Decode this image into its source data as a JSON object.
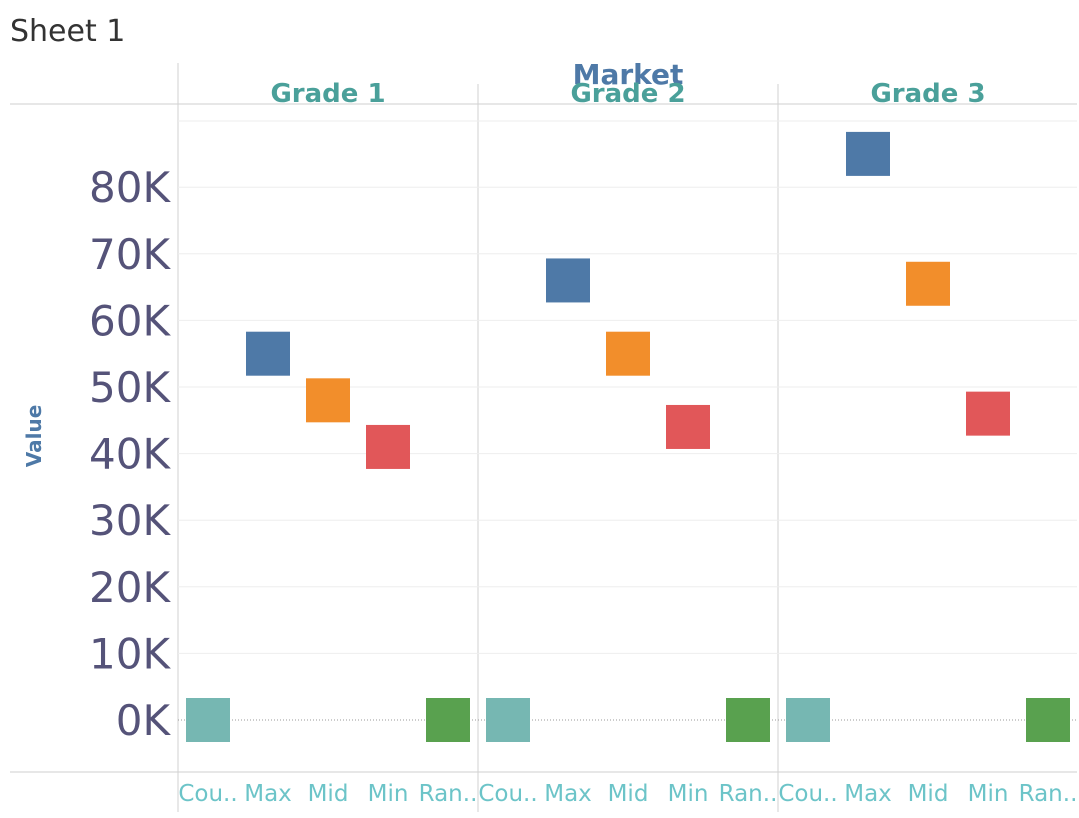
{
  "sheet_title": "Sheet 1",
  "chart_data": {
    "type": "scatter",
    "mark_shape": "square",
    "title": "Market",
    "ylabel": "Value",
    "ylim": [
      -7000,
      90000
    ],
    "yticks": [
      "0K",
      "10K",
      "20K",
      "30K",
      "40K",
      "50K",
      "60K",
      "70K",
      "80K"
    ],
    "ytick_values": [
      0,
      10000,
      20000,
      30000,
      40000,
      50000,
      60000,
      70000,
      80000
    ],
    "grid": true,
    "categories": [
      "Cou..",
      "Max",
      "Mid",
      "Min",
      "Ran.."
    ],
    "colors": [
      "#76b7b2",
      "#4e79a7",
      "#f28e2b",
      "#e15759",
      "#59a14f"
    ],
    "panels": [
      {
        "name": "Grade 1",
        "values": [
          0,
          55000,
          48000,
          41000,
          0
        ]
      },
      {
        "name": "Grade 2",
        "values": [
          0,
          66000,
          55000,
          44000,
          0
        ]
      },
      {
        "name": "Grade 3",
        "values": [
          0,
          85000,
          65500,
          46000,
          0
        ]
      }
    ]
  }
}
